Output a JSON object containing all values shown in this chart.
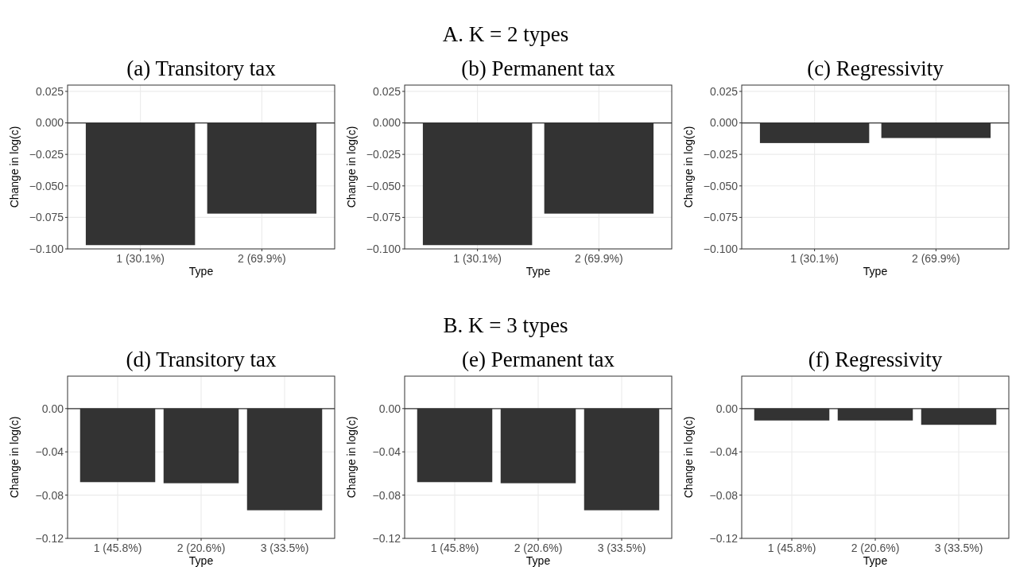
{
  "chart_data": [
    {
      "type": "bar",
      "title": "(a) Transitory tax",
      "annotations": [
        "A. K = 2 types"
      ],
      "xlabel": "Type",
      "ylabel": "Change in log(c)",
      "categories": [
        "1 (30.1%)",
        "2 (69.9%)"
      ],
      "values": [
        -0.097,
        -0.072
      ],
      "color": "#333333",
      "ylim": [
        -0.1,
        0.03
      ],
      "yticks": [
        {
          "value": -0.1,
          "label": "−0.100"
        },
        {
          "value": -0.075,
          "label": "−0.075"
        },
        {
          "value": -0.05,
          "label": "−0.050"
        },
        {
          "value": -0.025,
          "label": "−0.025"
        },
        {
          "value": 0,
          "label": "0.000"
        },
        {
          "value": 0.025,
          "label": "0.025"
        }
      ],
      "grid": true,
      "ref_lines": [
        {
          "axis": "y",
          "value": 0,
          "color": "#333333"
        }
      ]
    },
    {
      "type": "bar",
      "title": "(b) Permanent tax",
      "xlabel": "Type",
      "ylabel": "Change in log(c)",
      "categories": [
        "1 (30.1%)",
        "2 (69.9%)"
      ],
      "values": [
        -0.097,
        -0.072
      ],
      "color": "#333333",
      "ylim": [
        -0.1,
        0.03
      ],
      "yticks": [
        {
          "value": -0.1,
          "label": "−0.100"
        },
        {
          "value": -0.075,
          "label": "−0.075"
        },
        {
          "value": -0.05,
          "label": "−0.050"
        },
        {
          "value": -0.025,
          "label": "−0.025"
        },
        {
          "value": 0,
          "label": "0.000"
        },
        {
          "value": 0.025,
          "label": "0.025"
        }
      ],
      "grid": true,
      "ref_lines": [
        {
          "axis": "y",
          "value": 0,
          "color": "#333333"
        }
      ]
    },
    {
      "type": "bar",
      "title": "(c) Regressivity",
      "xlabel": "Type",
      "ylabel": "Change in log(c)",
      "categories": [
        "1 (30.1%)",
        "2 (69.9%)"
      ],
      "values": [
        -0.016,
        -0.012
      ],
      "color": "#333333",
      "ylim": [
        -0.1,
        0.03
      ],
      "yticks": [
        {
          "value": -0.1,
          "label": "−0.100"
        },
        {
          "value": -0.075,
          "label": "−0.075"
        },
        {
          "value": -0.05,
          "label": "−0.050"
        },
        {
          "value": -0.025,
          "label": "−0.025"
        },
        {
          "value": 0,
          "label": "0.000"
        },
        {
          "value": 0.025,
          "label": "0.025"
        }
      ],
      "grid": true,
      "ref_lines": [
        {
          "axis": "y",
          "value": 0,
          "color": "#333333"
        }
      ]
    },
    {
      "type": "bar",
      "title": "(d) Transitory tax",
      "annotations": [
        "B. K = 3 types"
      ],
      "xlabel": "Type",
      "ylabel": "Change in log(c)",
      "categories": [
        "1 (45.8%)",
        "2 (20.6%)",
        "3 (33.5%)"
      ],
      "values": [
        -0.068,
        -0.069,
        -0.094
      ],
      "color": "#333333",
      "ylim": [
        -0.12,
        0.03
      ],
      "yticks": [
        {
          "value": -0.12,
          "label": "−0.12"
        },
        {
          "value": -0.08,
          "label": "−0.08"
        },
        {
          "value": -0.04,
          "label": "−0.04"
        },
        {
          "value": 0,
          "label": "0.00"
        }
      ],
      "grid": true,
      "ref_lines": [
        {
          "axis": "y",
          "value": 0,
          "color": "#333333"
        }
      ]
    },
    {
      "type": "bar",
      "title": "(e) Permanent tax",
      "xlabel": "Type",
      "ylabel": "Change in log(c)",
      "categories": [
        "1 (45.8%)",
        "2 (20.6%)",
        "3 (33.5%)"
      ],
      "values": [
        -0.068,
        -0.069,
        -0.094
      ],
      "color": "#333333",
      "ylim": [
        -0.12,
        0.03
      ],
      "yticks": [
        {
          "value": -0.12,
          "label": "−0.12"
        },
        {
          "value": -0.08,
          "label": "−0.08"
        },
        {
          "value": -0.04,
          "label": "−0.04"
        },
        {
          "value": 0,
          "label": "0.00"
        }
      ],
      "grid": true,
      "ref_lines": [
        {
          "axis": "y",
          "value": 0,
          "color": "#333333"
        }
      ]
    },
    {
      "type": "bar",
      "title": "(f) Regressivity",
      "xlabel": "Type",
      "ylabel": "Change in log(c)",
      "categories": [
        "1 (45.8%)",
        "2 (20.6%)",
        "3 (33.5%)"
      ],
      "values": [
        -0.011,
        -0.011,
        -0.015
      ],
      "color": "#333333",
      "ylim": [
        -0.12,
        0.03
      ],
      "yticks": [
        {
          "value": -0.12,
          "label": "−0.12"
        },
        {
          "value": -0.08,
          "label": "−0.08"
        },
        {
          "value": -0.04,
          "label": "−0.04"
        },
        {
          "value": 0,
          "label": "0.00"
        }
      ],
      "grid": true,
      "ref_lines": [
        {
          "axis": "y",
          "value": 0,
          "color": "#333333"
        }
      ]
    }
  ]
}
